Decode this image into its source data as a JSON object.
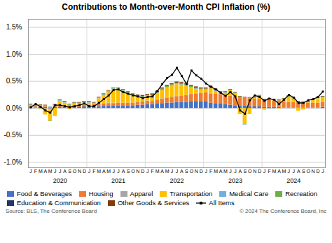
{
  "chart_data": {
    "type": "bar",
    "title": "Contributions to Month-over-Month CPI Inflation (%)",
    "stacked": true,
    "grid": true,
    "legend": "lower left",
    "footnotes": [
      "Source: BLS, The Conference Board",
      "© 2024 The Conference Board, Inc"
    ],
    "categories": [
      "J",
      "F",
      "M",
      "A",
      "M",
      "J",
      "J",
      "A",
      "S",
      "O",
      "N",
      "D",
      "J",
      "F",
      "M",
      "A",
      "M",
      "J",
      "J",
      "A",
      "S",
      "O",
      "N",
      "D",
      "J",
      "F",
      "M",
      "A",
      "M",
      "J",
      "J",
      "A",
      "S",
      "O",
      "N",
      "D",
      "J",
      "F",
      "M",
      "A",
      "M",
      "J",
      "J",
      "A",
      "S",
      "O",
      "N",
      "D",
      "J",
      "F",
      "M",
      "A",
      "M",
      "J",
      "J",
      "A",
      "S",
      "O",
      "N",
      "D",
      "J"
    ],
    "annotations": [
      {
        "text": "2020",
        "x": 6
      },
      {
        "text": "2021",
        "x": 18
      },
      {
        "text": "2022",
        "x": 30
      },
      {
        "text": "2023",
        "x": 42
      },
      {
        "text": "2024",
        "x": 54
      }
    ],
    "ylim": [
      -1.1,
      1.65
    ],
    "yticks": [
      {
        "value": -1.0,
        "label": "-1.0%"
      },
      {
        "value": -0.5,
        "label": "-0.5%"
      },
      {
        "value": 0.0,
        "label": "0.0%"
      },
      {
        "value": 0.5,
        "label": "0.5%"
      },
      {
        "value": 1.0,
        "label": "1.0%"
      },
      {
        "value": 1.5,
        "label": "1.5%"
      }
    ],
    "series": [
      {
        "name": "Food & Beverages",
        "color": "#4472C4",
        "type": "bar",
        "values": [
          0.01,
          0.01,
          0.02,
          0.02,
          0.01,
          0.02,
          0.02,
          0.02,
          0.02,
          0.02,
          0.02,
          0.03,
          0.03,
          0.03,
          0.03,
          0.04,
          0.05,
          0.05,
          0.05,
          0.05,
          0.05,
          0.05,
          0.06,
          0.06,
          0.07,
          0.07,
          0.08,
          0.09,
          0.1,
          0.1,
          0.11,
          0.11,
          0.11,
          0.12,
          0.12,
          0.12,
          0.12,
          0.1,
          0.09,
          0.08,
          0.07,
          0.06,
          0.05,
          0.04,
          0.04,
          0.03,
          0.03,
          0.03,
          0.02,
          0.02,
          0.02,
          0.02,
          0.01,
          0.01,
          0.01,
          0.01,
          0.01,
          0.01,
          0.01,
          0.01,
          0.02
        ]
      },
      {
        "name": "Housing",
        "color": "#ED7D31",
        "type": "bar",
        "values": [
          0.02,
          0.02,
          0.02,
          0.02,
          0.01,
          0.02,
          0.02,
          0.03,
          0.03,
          0.03,
          0.03,
          0.03,
          0.03,
          0.04,
          0.04,
          0.04,
          0.04,
          0.04,
          0.05,
          0.05,
          0.05,
          0.05,
          0.05,
          0.06,
          0.06,
          0.06,
          0.07,
          0.08,
          0.09,
          0.1,
          0.11,
          0.12,
          0.13,
          0.14,
          0.15,
          0.16,
          0.17,
          0.17,
          0.18,
          0.18,
          0.17,
          0.17,
          0.16,
          0.16,
          0.15,
          0.15,
          0.14,
          0.14,
          0.13,
          0.13,
          0.12,
          0.12,
          0.11,
          0.1,
          0.1,
          0.1,
          0.09,
          0.09,
          0.09,
          0.09,
          0.09
        ]
      },
      {
        "name": "Apparel",
        "color": "#A5A5A5",
        "type": "bar",
        "values": [
          -0.01,
          0.0,
          -0.01,
          -0.02,
          -0.03,
          0.01,
          0.01,
          0.0,
          0.0,
          0.0,
          0.0,
          -0.01,
          0.01,
          0.0,
          0.01,
          0.01,
          0.01,
          0.01,
          0.0,
          0.0,
          0.0,
          0.0,
          0.0,
          0.0,
          0.01,
          0.0,
          0.01,
          0.01,
          0.01,
          0.01,
          0.0,
          0.0,
          0.0,
          0.0,
          0.0,
          -0.01,
          0.0,
          0.0,
          0.0,
          0.0,
          0.0,
          0.0,
          0.0,
          0.0,
          0.0,
          0.0,
          0.0,
          0.0,
          0.0,
          0.0,
          0.0,
          0.0,
          0.0,
          0.0,
          0.0,
          0.0,
          0.0,
          0.0,
          0.0,
          0.0,
          0.0
        ]
      },
      {
        "name": "Transportation",
        "color": "#FFC000",
        "type": "bar",
        "values": [
          0.02,
          0.0,
          -0.01,
          -0.1,
          -0.2,
          -0.15,
          0.08,
          0.05,
          -0.02,
          0.03,
          0.03,
          0.04,
          0.03,
          0.01,
          0.1,
          0.15,
          0.2,
          0.25,
          0.25,
          0.22,
          0.18,
          0.14,
          0.1,
          0.08,
          0.08,
          0.1,
          0.12,
          0.15,
          0.18,
          0.2,
          0.22,
          0.2,
          0.18,
          0.12,
          0.08,
          0.06,
          0.05,
          0.1,
          0.05,
          0.02,
          0.04,
          0.1,
          0.07,
          -0.1,
          -0.3,
          -0.1,
          0.02,
          0.05,
          -0.02,
          0.01,
          0.01,
          -0.01,
          0.04,
          0.1,
          0.07,
          -0.05,
          -0.03,
          0.01,
          0.05,
          0.08,
          0.08
        ]
      },
      {
        "name": "Medical Care",
        "color": "#70B0E0",
        "type": "bar",
        "values": [
          0.01,
          0.01,
          0.01,
          0.01,
          0.01,
          0.01,
          0.01,
          0.01,
          0.01,
          0.01,
          0.01,
          0.01,
          0.01,
          0.01,
          0.01,
          0.01,
          0.01,
          0.01,
          0.01,
          0.01,
          0.01,
          0.01,
          0.01,
          0.01,
          0.01,
          0.01,
          0.01,
          0.01,
          0.01,
          0.01,
          0.01,
          0.01,
          0.01,
          0.01,
          0.01,
          0.01,
          0.01,
          0.01,
          0.01,
          0.01,
          0.01,
          0.0,
          0.0,
          -0.01,
          -0.01,
          -0.01,
          -0.01,
          -0.01,
          -0.01,
          -0.01,
          -0.01,
          0.0,
          0.0,
          0.0,
          0.0,
          0.0,
          0.0,
          0.0,
          0.0,
          0.01,
          0.01
        ]
      },
      {
        "name": "Recreation",
        "color": "#70AD47",
        "type": "bar",
        "values": [
          0.01,
          0.01,
          0.01,
          0.0,
          -0.01,
          0.0,
          0.01,
          0.01,
          0.01,
          0.01,
          0.01,
          0.01,
          0.01,
          0.01,
          0.01,
          0.01,
          0.01,
          0.01,
          0.01,
          0.01,
          0.01,
          0.01,
          0.01,
          0.01,
          0.01,
          0.01,
          0.01,
          0.02,
          0.02,
          0.02,
          0.02,
          0.02,
          0.02,
          0.02,
          0.02,
          0.01,
          0.01,
          0.01,
          0.01,
          0.01,
          0.01,
          0.01,
          0.01,
          0.01,
          0.01,
          0.01,
          0.01,
          0.01,
          0.01,
          0.01,
          0.01,
          0.01,
          0.01,
          0.01,
          0.01,
          0.01,
          0.01,
          0.01,
          0.01,
          0.01,
          0.01
        ]
      },
      {
        "name": "Education & Communication",
        "color": "#1F3864",
        "type": "bar",
        "values": [
          0.0,
          0.0,
          0.0,
          0.0,
          0.0,
          0.0,
          0.0,
          0.0,
          0.0,
          0.0,
          0.0,
          0.0,
          0.0,
          0.0,
          0.0,
          0.0,
          0.0,
          0.0,
          0.0,
          0.0,
          0.0,
          0.0,
          0.0,
          0.0,
          0.0,
          0.0,
          0.0,
          0.0,
          0.0,
          0.0,
          0.0,
          0.0,
          0.0,
          0.0,
          0.0,
          0.0,
          0.0,
          0.0,
          0.0,
          0.0,
          0.0,
          0.0,
          0.0,
          0.0,
          0.0,
          0.0,
          0.0,
          0.0,
          0.0,
          0.0,
          0.0,
          0.0,
          0.0,
          0.0,
          0.0,
          0.0,
          0.0,
          0.0,
          0.0,
          0.0,
          0.0
        ]
      },
      {
        "name": "Other Goods & Services",
        "color": "#843C0C",
        "type": "bar",
        "values": [
          0.01,
          0.01,
          0.01,
          0.01,
          0.0,
          0.01,
          0.01,
          0.01,
          0.01,
          0.01,
          0.01,
          0.01,
          0.01,
          0.01,
          0.01,
          0.01,
          0.01,
          0.01,
          0.01,
          0.01,
          0.01,
          0.01,
          0.02,
          0.02,
          0.02,
          0.02,
          0.02,
          0.02,
          0.02,
          0.02,
          0.02,
          0.02,
          0.02,
          0.02,
          0.02,
          0.02,
          0.02,
          0.02,
          0.02,
          0.01,
          0.01,
          0.01,
          0.01,
          0.01,
          0.01,
          0.01,
          0.01,
          0.01,
          0.01,
          0.01,
          0.01,
          0.01,
          0.01,
          0.01,
          0.01,
          0.01,
          0.01,
          0.01,
          0.01,
          0.01,
          0.01
        ]
      },
      {
        "name": "All Items",
        "color": "#000000",
        "type": "line",
        "marker": "square",
        "values": [
          0.02,
          0.08,
          0.03,
          -0.04,
          -0.08,
          0.06,
          0.06,
          0.04,
          0.02,
          0.04,
          0.06,
          0.09,
          0.04,
          0.04,
          0.1,
          0.17,
          0.24,
          0.34,
          0.35,
          0.3,
          0.27,
          0.24,
          0.22,
          0.19,
          0.21,
          0.22,
          0.32,
          0.45,
          0.56,
          0.62,
          0.75,
          0.6,
          0.45,
          0.7,
          0.61,
          0.55,
          0.46,
          0.4,
          0.35,
          0.29,
          0.23,
          0.3,
          0.22,
          -0.04,
          -0.1,
          0.15,
          0.24,
          0.21,
          0.14,
          0.18,
          0.16,
          0.08,
          0.16,
          0.25,
          0.2,
          0.1,
          0.1,
          0.15,
          0.17,
          0.21,
          0.31
        ]
      }
    ]
  }
}
